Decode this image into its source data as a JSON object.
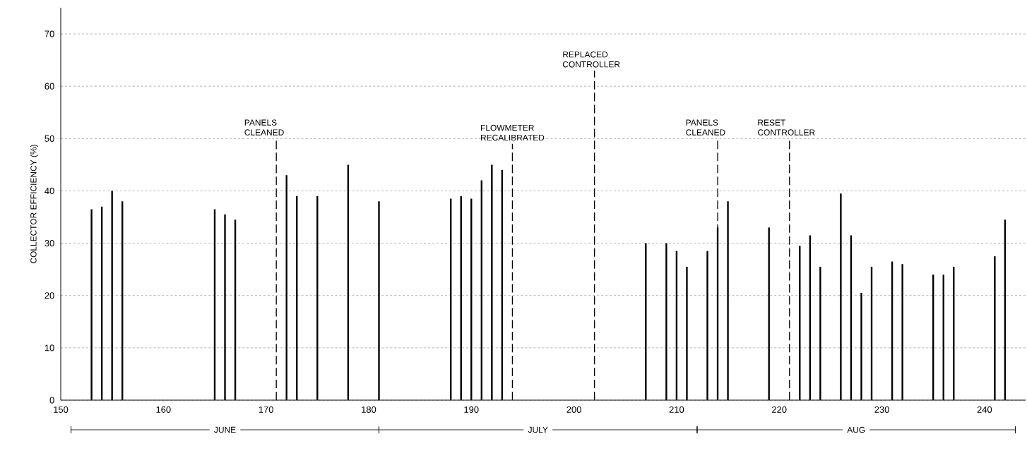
{
  "chart_data": {
    "type": "bar",
    "ylabel": "COLLECTOR EFFICIENCY (%)",
    "x": [
      153,
      154,
      155,
      156,
      165,
      166,
      167,
      172,
      173,
      175,
      178,
      181,
      188,
      189,
      190,
      191,
      192,
      193,
      207,
      209,
      210,
      211,
      213,
      214,
      215,
      219,
      222,
      223,
      224,
      226,
      227,
      228,
      229,
      231,
      232,
      235,
      236,
      237,
      241,
      242
    ],
    "values": [
      36.5,
      37,
      40,
      38,
      36.5,
      35.5,
      34.5,
      43,
      39,
      39,
      45,
      38,
      38.5,
      39,
      38.5,
      42,
      45,
      44,
      30,
      30,
      28.5,
      25.5,
      28.5,
      33,
      38,
      33,
      29.5,
      31.5,
      25.5,
      39.5,
      31.5,
      20.5,
      25.5,
      26.5,
      26,
      24,
      24,
      25.5,
      27.5,
      34.5
    ],
    "color": "#000000",
    "xlim": [
      150,
      244
    ],
    "ylim": [
      0,
      75
    ],
    "xticks": [
      150,
      160,
      170,
      180,
      190,
      200,
      210,
      220,
      230,
      240
    ],
    "yticks": [
      0,
      10,
      20,
      30,
      40,
      50,
      60,
      70
    ],
    "grid": "y",
    "ref_lines": [
      {
        "axis": "x",
        "value": 171,
        "label": "PANELS CLEANED",
        "line_style": "dashed"
      },
      {
        "axis": "x",
        "value": 194,
        "label": "FLOWMETER RECALIBRATED",
        "line_style": "dashed"
      },
      {
        "axis": "x",
        "value": 202,
        "label": "REPLACED CONTROLLER",
        "line_style": "dashed"
      },
      {
        "axis": "x",
        "value": 214,
        "label": "PANELS CLEANED",
        "line_style": "dashed"
      },
      {
        "axis": "x",
        "value": 221,
        "label": "RESET CONTROLLER",
        "line_style": "dashed"
      }
    ],
    "annotations": [
      "JUNE",
      "JULY",
      "AUG"
    ]
  }
}
